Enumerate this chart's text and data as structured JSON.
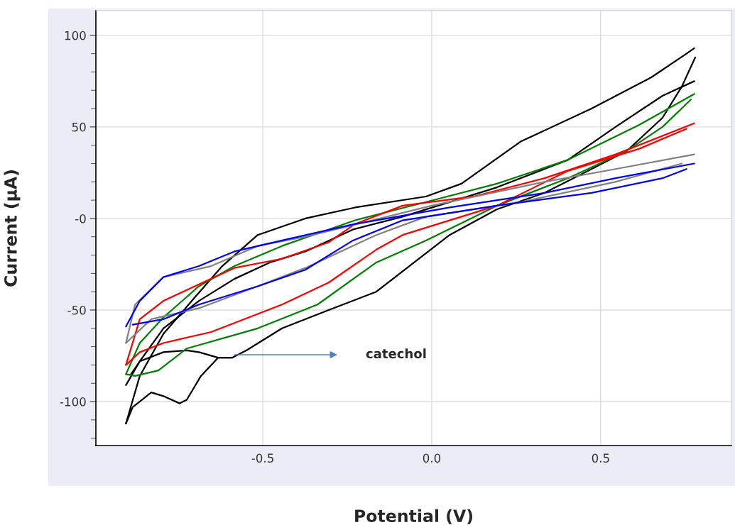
{
  "chart_data": {
    "type": "line",
    "xlabel": "Potential (V)",
    "ylabel": "Current (µA)",
    "xlim": [
      -0.994,
      0.887
    ],
    "ylim": [
      -124,
      113.5
    ],
    "xticks": [
      -0.5,
      {
        "value": 0.0,
        "label": "0.0"
      },
      0.5
    ],
    "yticks": [
      {
        "value": -120,
        "label": null
      },
      {
        "value": -110,
        "label": null
      },
      -100,
      {
        "value": -90,
        "label": null
      },
      {
        "value": -80,
        "label": null
      },
      {
        "value": -70,
        "label": null
      },
      {
        "value": -60,
        "label": null
      },
      -50,
      {
        "value": -40,
        "label": null
      },
      {
        "value": -30,
        "label": null
      },
      {
        "value": -20,
        "label": null
      },
      {
        "value": -10,
        "label": null
      },
      {
        "value": 0,
        "label": "-0"
      },
      {
        "value": 10,
        "label": null
      },
      {
        "value": 20,
        "label": null
      },
      {
        "value": 30,
        "label": null
      },
      {
        "value": 40,
        "label": null
      },
      50,
      {
        "value": 60,
        "label": null
      },
      {
        "value": 70,
        "label": null
      },
      {
        "value": 80,
        "label": null
      },
      {
        "value": 90,
        "label": null
      },
      100
    ],
    "grid": true,
    "legend": false,
    "marker": "none",
    "line_style": "solid",
    "annotations": [
      "catechol"
    ],
    "series": [
      {
        "color": "#000000",
        "x": [
          -0.905,
          -0.864,
          -0.794,
          -0.71,
          -0.62,
          -0.515,
          -0.374,
          -0.227,
          -0.017,
          0.088,
          0.263,
          0.473,
          0.649,
          0.754,
          0.777
        ],
        "values": [
          -112,
          -86,
          -63,
          -45,
          -26,
          -9,
          0,
          6,
          12,
          19,
          42,
          60,
          77,
          90,
          93
        ]
      },
      {
        "color": "#000000",
        "x": [
          -0.905,
          -0.885,
          -0.83,
          -0.794,
          -0.746,
          -0.725,
          -0.683,
          -0.632,
          -0.59,
          -0.548,
          -0.443,
          -0.305,
          -0.164,
          0.053,
          0.193,
          0.334,
          0.473,
          0.578,
          0.683,
          0.74,
          0.78
        ],
        "values": [
          -112,
          -103,
          -95,
          -97,
          -101,
          -99,
          -86,
          -76,
          -76,
          -72,
          -60,
          -50,
          -40,
          -9,
          5,
          14,
          27,
          37,
          55,
          72,
          88
        ]
      },
      {
        "color": "#000000",
        "x": [
          -0.905,
          -0.864,
          -0.794,
          -0.689,
          -0.584,
          -0.479,
          -0.374,
          -0.233,
          -0.086,
          0.193,
          0.403,
          0.544,
          0.683,
          0.777
        ],
        "values": [
          -91,
          -78,
          -60,
          -45,
          -33,
          -24,
          -18,
          -6,
          1,
          17,
          32,
          50,
          67,
          75
        ]
      },
      {
        "color": "#000000",
        "x": [
          -0.59,
          -0.632,
          -0.689,
          -0.725,
          -0.794,
          -0.864,
          -0.89
        ],
        "values": [
          -76,
          -76,
          -73,
          -72,
          -73,
          -78,
          -85
        ]
      },
      {
        "color": "#008000",
        "x": [
          -0.905,
          -0.864,
          -0.794,
          -0.689,
          -0.584,
          -0.443,
          -0.305,
          -0.227,
          -0.017,
          0.193,
          0.403,
          0.613,
          0.777
        ],
        "values": [
          -85,
          -68,
          -54,
          -37,
          -26,
          -15,
          -6,
          -1,
          9,
          19,
          32,
          51,
          68
        ]
      },
      {
        "color": "#008000",
        "x": [
          -0.905,
          -0.878,
          -0.809,
          -0.725,
          -0.515,
          -0.338,
          -0.164,
          -0.017,
          0.193,
          0.403,
          0.578,
          0.683,
          0.767
        ],
        "values": [
          -85,
          -86,
          -83,
          -71,
          -60,
          -47,
          -24,
          -12,
          7,
          22,
          37,
          50,
          65
        ]
      },
      {
        "color": "#ff0000",
        "x": [
          -0.905,
          -0.864,
          -0.794,
          -0.689,
          -0.584,
          -0.443,
          -0.305,
          -0.227,
          -0.086,
          0.124,
          0.334,
          0.544,
          0.777
        ],
        "values": [
          -80,
          -55,
          -45,
          -36,
          -27,
          -22,
          -13,
          -3,
          7,
          12,
          22,
          35,
          52
        ]
      },
      {
        "color": "#ff0000",
        "x": [
          -0.905,
          -0.864,
          -0.794,
          -0.653,
          -0.443,
          -0.305,
          -0.164,
          -0.086,
          0.193,
          0.403,
          0.613,
          0.754
        ],
        "values": [
          -80,
          -73,
          -68,
          -62,
          -47,
          -35,
          -17,
          -9,
          7,
          26,
          38,
          49
        ]
      },
      {
        "color": "#808080",
        "x": [
          -0.905,
          -0.878,
          -0.794,
          -0.653,
          -0.515,
          -0.374,
          0.0,
          0.334,
          0.544,
          0.777
        ],
        "values": [
          -68,
          -47,
          -32,
          -26,
          -15,
          -10,
          7,
          20,
          27,
          35
        ]
      },
      {
        "color": "#808080",
        "x": [
          -0.905,
          -0.83,
          -0.689,
          -0.515,
          -0.374,
          -0.164,
          -0.017,
          0.263,
          0.544,
          0.74
        ],
        "values": [
          -68,
          -55,
          -49,
          -37,
          -27,
          -9,
          1,
          9,
          20,
          30
        ]
      },
      {
        "color": "#0000ff",
        "x": [
          -0.905,
          -0.864,
          -0.794,
          -0.689,
          -0.584,
          -0.443,
          -0.227,
          0.053,
          0.334,
          0.544,
          0.777
        ],
        "values": [
          -59,
          -45,
          -32,
          -26,
          -18,
          -12,
          -3,
          6,
          14,
          22,
          30
        ]
      },
      {
        "color": "#0000ff",
        "x": [
          -0.885,
          -0.794,
          -0.689,
          -0.515,
          -0.374,
          -0.233,
          -0.086,
          0.193,
          0.473,
          0.683,
          0.754
        ],
        "values": [
          -58,
          -55,
          -47,
          -37,
          -28,
          -12,
          -1,
          7,
          14,
          22,
          27
        ]
      }
    ]
  }
}
